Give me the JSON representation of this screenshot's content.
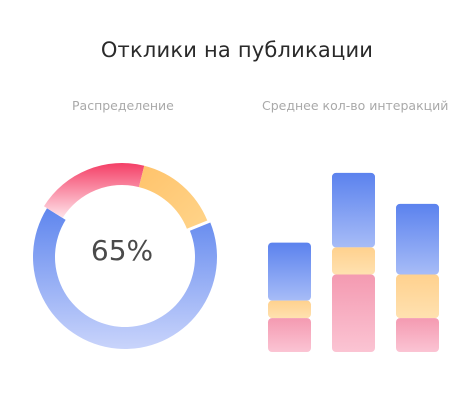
{
  "title": "Отклики на публикации",
  "donut": {
    "subtitle": "Распределение",
    "center_label": "65%"
  },
  "bars": {
    "subtitle": "Среднее кол-во интеракций"
  },
  "chart_data": [
    {
      "type": "pie",
      "title": "Распределение",
      "center_label": "65%",
      "slices": [
        {
          "value": 65,
          "color": "#6a8ff0"
        },
        {
          "value": 20,
          "color": "#f43f66"
        },
        {
          "value": 15,
          "color": "#ffc36b"
        }
      ]
    },
    {
      "type": "bar",
      "title": "Среднее кол-во интеракций",
      "stacked": true,
      "categories": [
        "",
        "",
        ""
      ],
      "ylim": [
        0,
        190
      ],
      "series": [
        {
          "values": [
            35,
            80,
            35
          ],
          "color": "#f6a5b9"
        },
        {
          "values": [
            18,
            28,
            45
          ],
          "color": "#ffd89e"
        },
        {
          "values": [
            60,
            77,
            73
          ],
          "color": "#6e8ff1"
        }
      ]
    }
  ]
}
